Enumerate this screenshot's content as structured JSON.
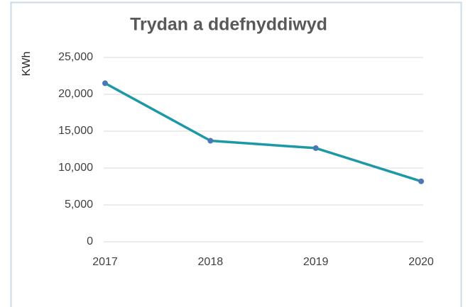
{
  "chart_data": {
    "type": "line",
    "title": "Trydan a ddefnyddiwyd",
    "y_label": "KWh",
    "categories": [
      "2017",
      "2018",
      "2019",
      "2020"
    ],
    "values": [
      21500,
      13700,
      12700,
      8200
    ],
    "color": "#1d98a6",
    "marker_color": "#4a78b5",
    "ylim": [
      0,
      25000
    ],
    "yticks": [
      0,
      {
        "value": 5000,
        "label": "5,000"
      },
      {
        "value": 10000,
        "label": "10,000"
      },
      {
        "value": 15000,
        "label": "15,000"
      },
      {
        "value": 20000,
        "label": "20,000"
      },
      {
        "value": 25000,
        "label": "25,000"
      }
    ],
    "grid": true
  }
}
